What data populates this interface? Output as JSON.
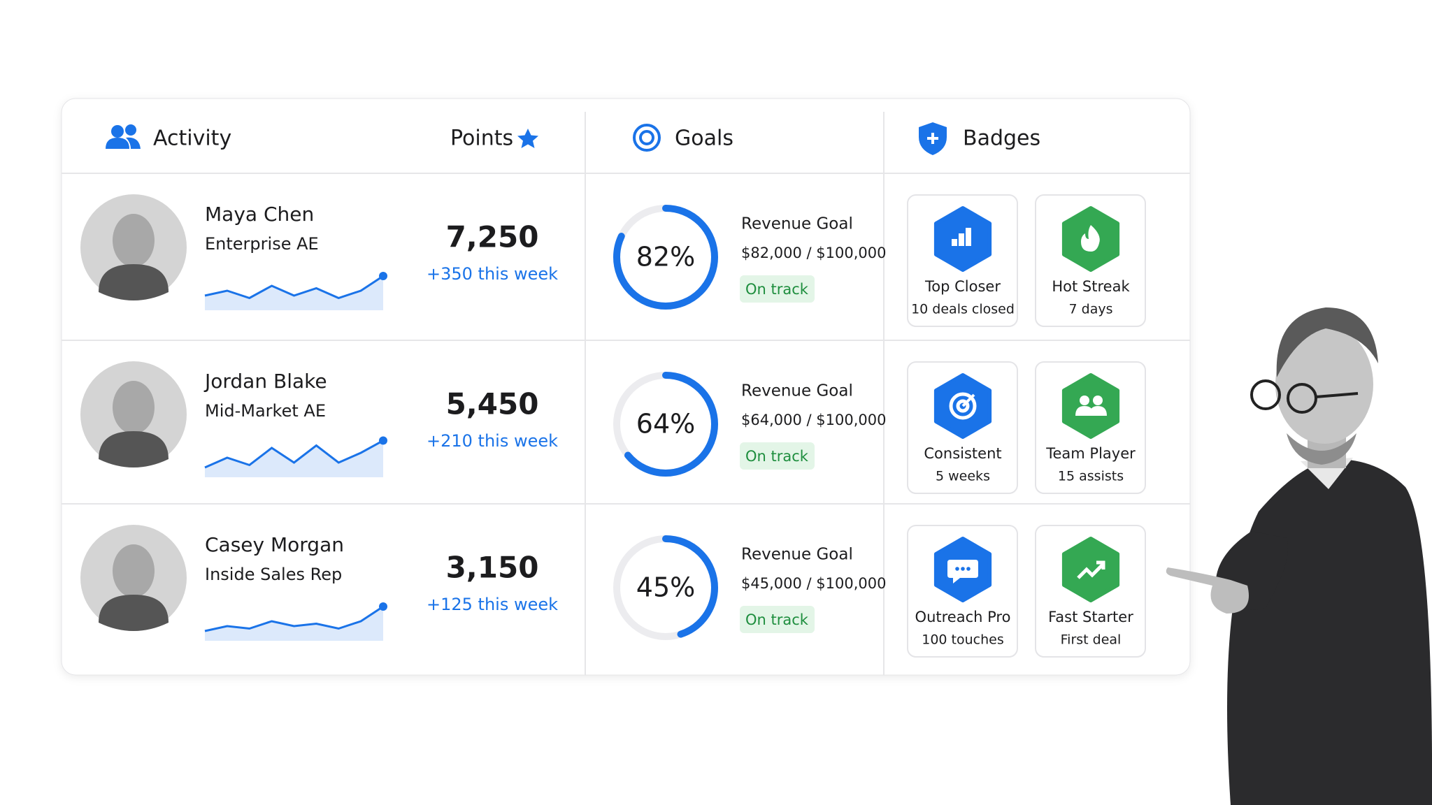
{
  "header": {
    "activity": "Activity",
    "points": "Points",
    "goals": "Goals",
    "badges": "Badges"
  },
  "rows": [
    {
      "name": "Maya Chen",
      "role": "Enterprise AE",
      "points": "7,250",
      "weekly": "+350 this week",
      "sparkline": [
        3,
        4,
        2.5,
        5,
        3,
        4.5,
        2.5,
        4,
        7
      ],
      "goal": {
        "progress": 82,
        "progress_label": "82%",
        "title": "Revenue Goal",
        "amount": "$82,000 / $100,000",
        "status": "On track"
      },
      "badges": [
        {
          "title": "Top Closer",
          "detail": "10 deals closed",
          "color": "#1a73e8"
        },
        {
          "title": "Hot Streak",
          "detail": "7 days",
          "color": "#34a853"
        }
      ]
    },
    {
      "name": "Jordan Blake",
      "role": "Mid-Market AE",
      "points": "5,450",
      "weekly": "+210 this week",
      "sparkline": [
        2,
        4,
        2.5,
        6,
        3,
        6.5,
        3,
        5,
        7.5
      ],
      "goal": {
        "progress": 64,
        "progress_label": "64%",
        "title": "Revenue Goal",
        "amount": "$64,000 / $100,000",
        "status": "On track"
      },
      "badges": [
        {
          "title": "Consistent",
          "detail": "5 weeks",
          "color": "#1a73e8"
        },
        {
          "title": "Team Player",
          "detail": "15 assists",
          "color": "#34a853"
        }
      ]
    },
    {
      "name": "Casey Morgan",
      "role": "Inside Sales Rep",
      "points": "3,150",
      "weekly": "+125 this week",
      "sparkline": [
        2,
        3,
        2.5,
        4,
        3,
        3.5,
        2.5,
        4,
        7
      ],
      "goal": {
        "progress": 45,
        "progress_label": "45%",
        "title": "Revenue Goal",
        "amount": "$45,000 / $100,000",
        "status": "On track"
      },
      "badges": [
        {
          "title": "Outreach Pro",
          "detail": "100 touches",
          "color": "#1a73e8"
        },
        {
          "title": "Fast Starter",
          "detail": "First deal",
          "color": "#34a853"
        }
      ]
    }
  ]
}
